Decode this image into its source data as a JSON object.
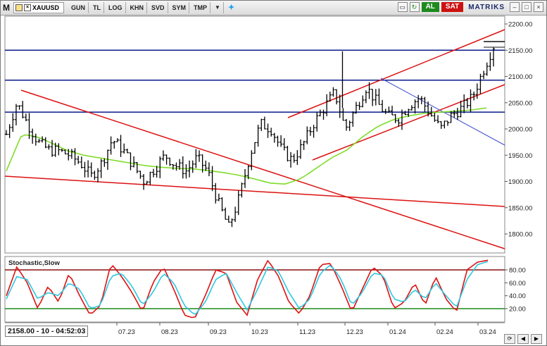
{
  "toolbar": {
    "m_label": "M",
    "symbol": "XAUUSD",
    "items": [
      "GUN",
      "TL",
      "LOG",
      "KHN",
      "SVD",
      "SYM",
      "TMP"
    ],
    "al_label": "AL",
    "sat_label": "SAT",
    "brand": "MATRIKS"
  },
  "status": {
    "readout": "2158.00 - 10 - 04:52:03"
  },
  "colors": {
    "candles": "#000000",
    "ma": "#7fdc2a",
    "channel": "#dd1111",
    "support": "#0a1a8a",
    "trend_blue": "#3a4dd0",
    "stoch_k": "#dd1111",
    "stoch_d": "#2ec8e0",
    "stoch_hi": "#8a1010",
    "stoch_lo": "#1e8a1e"
  },
  "chart_data": [
    {
      "type": "candlestick",
      "title": "",
      "x_ticks": [
        "07.23",
        "08.23",
        "09.23",
        "10.23",
        "11.23",
        "12.23",
        "01.24",
        "02.24",
        "03.24"
      ],
      "y_ticks": [
        1800,
        1850,
        1900,
        1950,
        2000,
        2050,
        2100,
        2150,
        2200
      ],
      "ylim": [
        1775,
        2220
      ],
      "horizontal_levels": [
        2150,
        2093,
        2032
      ],
      "ma_approx": [
        1920,
        1990,
        1985,
        1972,
        1958,
        1950,
        1945,
        1940,
        1935,
        1930,
        1927,
        1925,
        1924,
        1921,
        1917,
        1912,
        1905,
        1897,
        1895,
        1905,
        1925,
        1945,
        1960,
        1985,
        2005,
        2018,
        2025,
        2030,
        2032,
        2034,
        2036,
        2040
      ],
      "close_approx": [
        1990,
        2050,
        2010,
        1975,
        1960,
        1958,
        1950,
        1935,
        1910,
        1935,
        1980,
        1960,
        1930,
        1900,
        1925,
        1950,
        1930,
        1920,
        1945,
        1920,
        1860,
        1812,
        1870,
        1950,
        2010,
        2000,
        1960,
        1940,
        1970,
        2010,
        2040,
        2070,
        2000,
        2040,
        2080,
        2050,
        2025,
        2020,
        2045,
        2060,
        2030,
        2000,
        2025,
        2040,
        2060,
        2110,
        2158
      ],
      "last_close": 2158.0
    },
    {
      "type": "line",
      "title": "Stochastic,Slow",
      "y_ticks": [
        20,
        40,
        60,
        80
      ],
      "ylim": [
        0,
        100
      ],
      "levels": [
        80,
        20
      ],
      "series": [
        {
          "name": "%K",
          "values": [
            40,
            85,
            60,
            20,
            55,
            30,
            75,
            40,
            10,
            25,
            90,
            70,
            45,
            15,
            60,
            85,
            50,
            10,
            5,
            40,
            80,
            75,
            30,
            10,
            65,
            95,
            70,
            30,
            12,
            40,
            88,
            90,
            55,
            15,
            50,
            85,
            70,
            20,
            30,
            60,
            25,
            70,
            35,
            15,
            80,
            92,
            95
          ]
        },
        {
          "name": "%D",
          "values": [
            35,
            70,
            65,
            35,
            45,
            40,
            60,
            50,
            20,
            25,
            70,
            75,
            55,
            25,
            45,
            75,
            60,
            25,
            10,
            30,
            65,
            75,
            45,
            18,
            50,
            85,
            78,
            45,
            20,
            35,
            75,
            88,
            65,
            25,
            45,
            75,
            72,
            35,
            30,
            50,
            35,
            60,
            40,
            22,
            65,
            88,
            93
          ]
        }
      ]
    }
  ]
}
